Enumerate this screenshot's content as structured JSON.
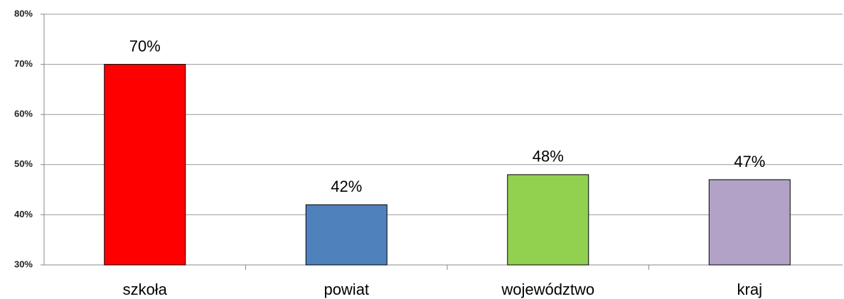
{
  "chart_data": {
    "type": "bar",
    "categories": [
      "szkoła",
      "powiat",
      "województwo",
      "kraj"
    ],
    "values": [
      70,
      42,
      48,
      47
    ],
    "value_labels": [
      "70%",
      "42%",
      "48%",
      "47%"
    ],
    "colors": [
      "#ff0000",
      "#4f81bd",
      "#92d050",
      "#b2a2c7"
    ],
    "ylim": [
      30,
      80
    ],
    "yticks": [
      {
        "value": 30,
        "label": "30%"
      },
      {
        "value": 40,
        "label": "40%"
      },
      {
        "value": 50,
        "label": "50%"
      },
      {
        "value": 60,
        "label": "60%"
      },
      {
        "value": 70,
        "label": "70%"
      },
      {
        "value": 80,
        "label": "80%"
      }
    ],
    "grid": true
  }
}
